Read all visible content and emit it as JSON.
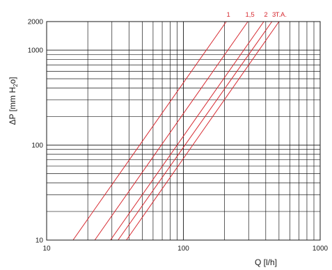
{
  "chart_data": {
    "type": "line",
    "xlabel": "Q [l/h]",
    "ylabel_parts": {
      "delta": "ΔP [mm H",
      "sub": "2",
      "rest": "o]"
    },
    "x_scale": "log",
    "y_scale": "log",
    "xlim": [
      10,
      1000
    ],
    "ylim": [
      10,
      2000
    ],
    "x_ticks": [
      {
        "value": 10,
        "label": "10"
      },
      {
        "value": 100,
        "label": "100"
      },
      {
        "value": 1000,
        "label": "1000"
      }
    ],
    "y_ticks": [
      {
        "value": 10,
        "label": "10"
      },
      {
        "value": 100,
        "label": "100"
      },
      {
        "value": 1000,
        "label": "1000"
      },
      {
        "value": 2000,
        "label": "2000"
      }
    ],
    "grid": true,
    "colors": {
      "series": "#d6282f",
      "grid": "#1a1a1a",
      "text": "#1a1a1a"
    },
    "series": [
      {
        "name": "1",
        "points": [
          [
            15.6,
            10
          ],
          [
            206,
            2000
          ]
        ]
      },
      {
        "name": "1,5",
        "points": [
          [
            22.5,
            10
          ],
          [
            296,
            2000
          ]
        ]
      },
      {
        "name": "2",
        "points": [
          [
            29.3,
            10
          ],
          [
            387,
            2000
          ]
        ]
      },
      {
        "name": "3",
        "points": [
          [
            33.3,
            10
          ],
          [
            444,
            2000
          ]
        ]
      },
      {
        "name": "T.A.",
        "points": [
          [
            38.3,
            10
          ],
          [
            500,
            2000
          ]
        ]
      }
    ]
  }
}
